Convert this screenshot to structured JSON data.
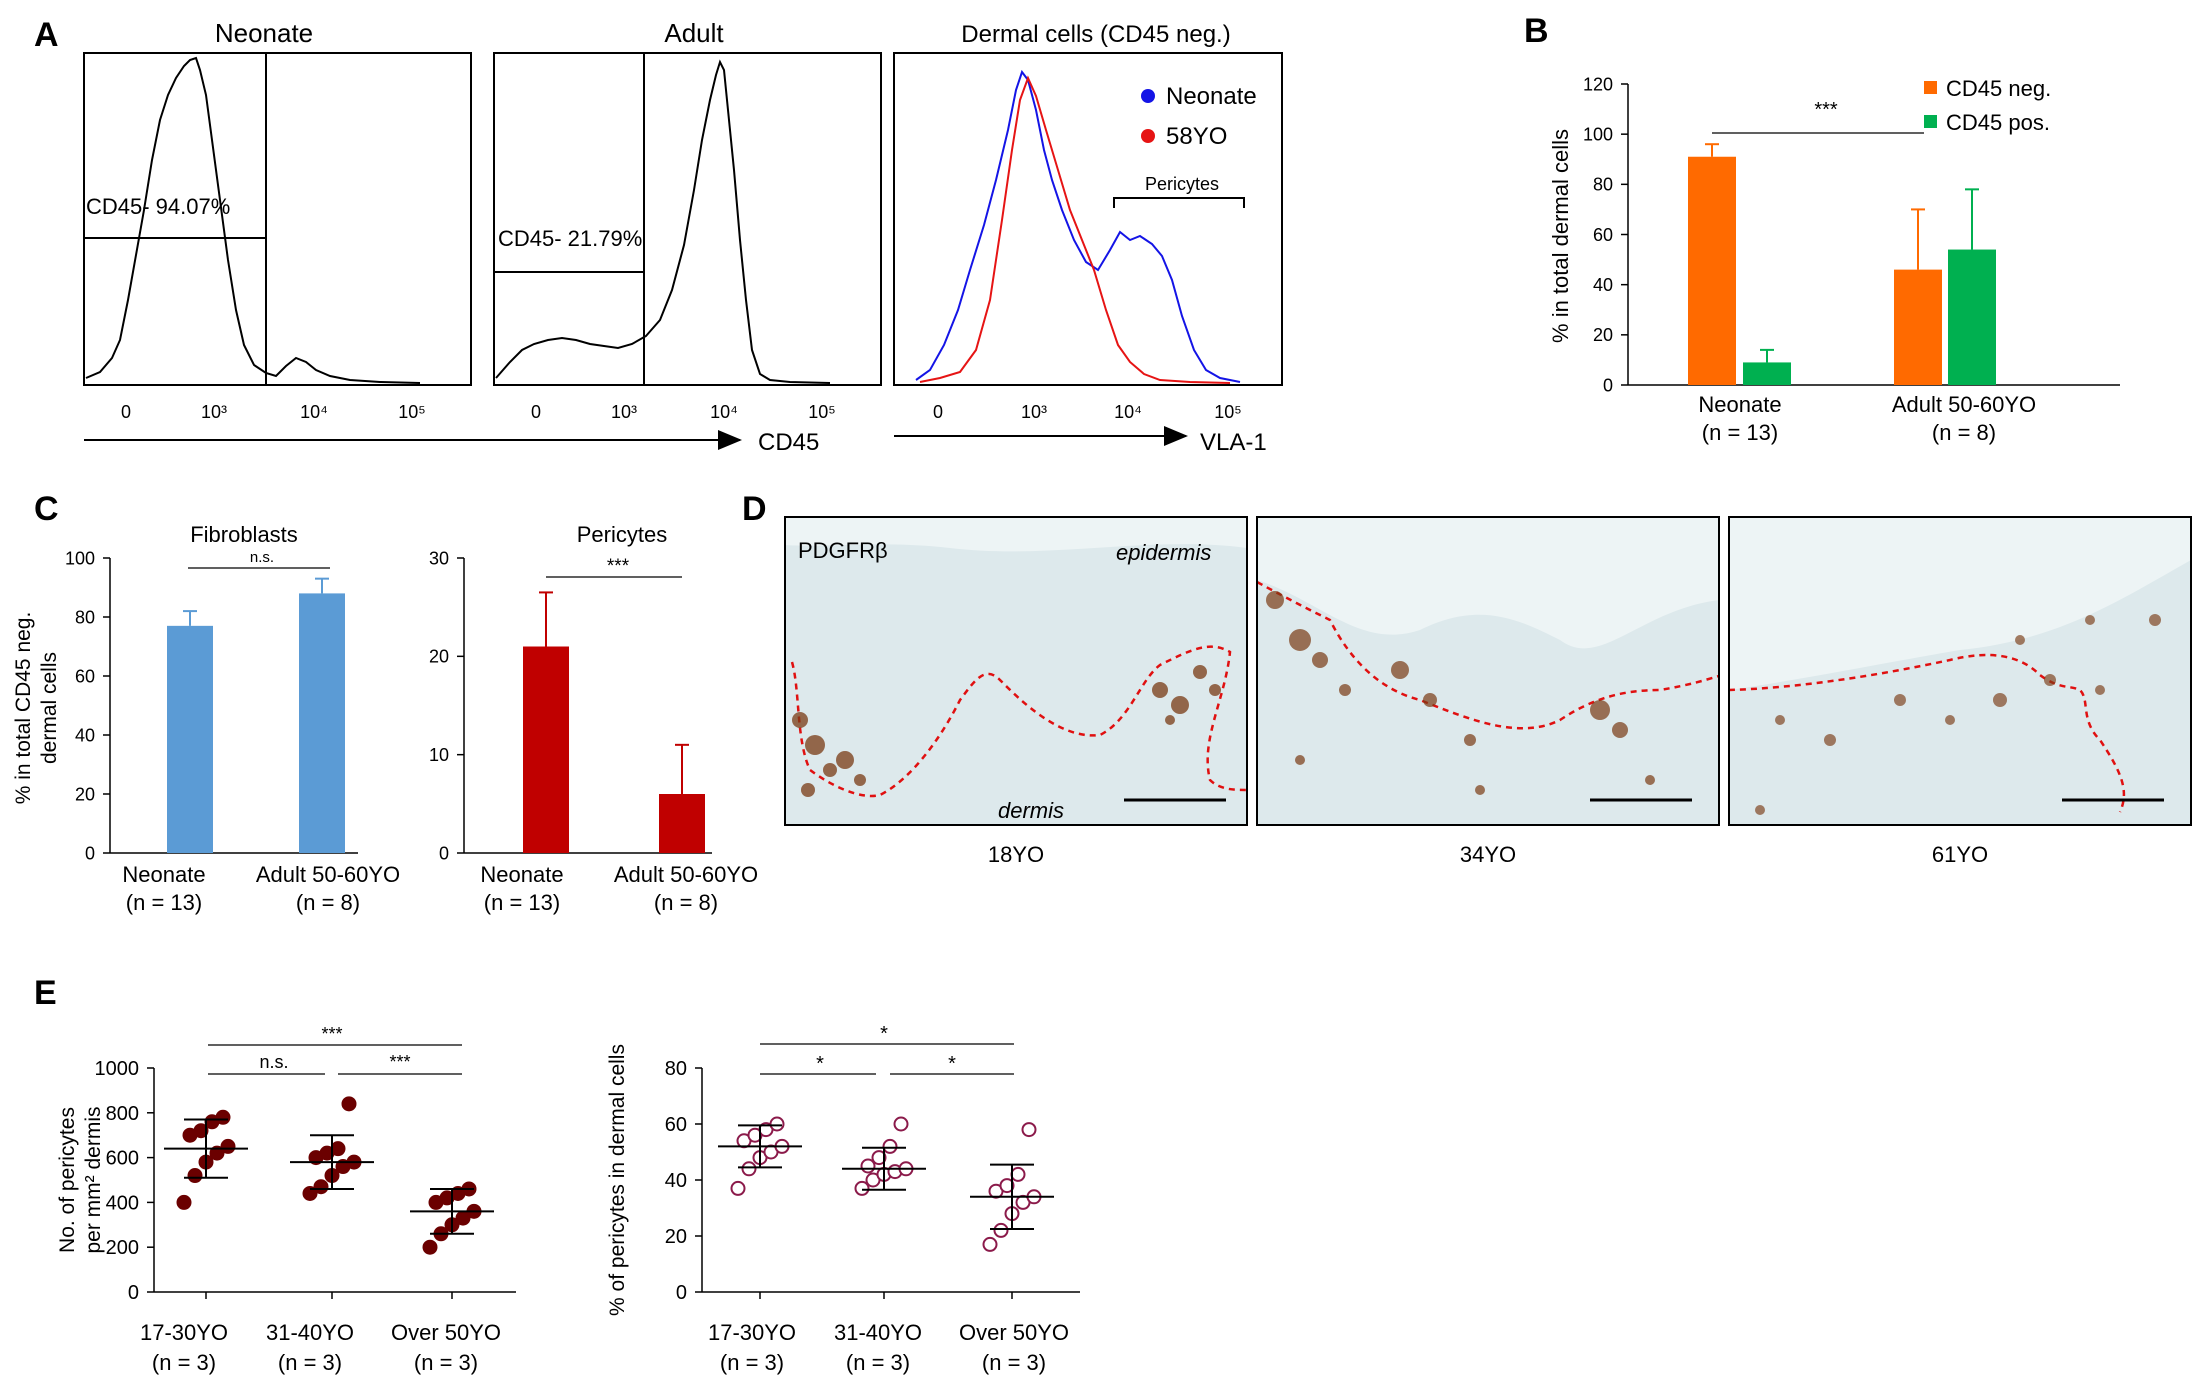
{
  "panels": {
    "a": "A",
    "b": "B",
    "c": "C",
    "d": "D",
    "e": "E"
  },
  "colors": {
    "neonate_line": "#1414e6",
    "adult_line": "#e61414",
    "orange": "#ff6a00",
    "green": "#00b050",
    "blue_bar": "#5b9bd5",
    "red_bar": "#c00000",
    "maroon": "#6b0000",
    "purple_open": "#8b1a4a",
    "tissue": "#dde9ec",
    "stain": "#7a3b14",
    "dash": "#e01010"
  },
  "chart_data": [
    {
      "id": "A1",
      "type": "histogram",
      "title": "Neonate",
      "gate_label": "CD45- 94.07%",
      "tick_labels": [
        "0",
        "10³",
        "10⁴",
        "10⁵"
      ]
    },
    {
      "id": "A2",
      "type": "histogram",
      "title": "Adult",
      "gate_label": "CD45- 21.79%",
      "tick_labels": [
        "0",
        "10³",
        "10⁴",
        "10⁵"
      ],
      "xlabel": "CD45"
    },
    {
      "id": "A3",
      "type": "histogram",
      "title": "Dermal cells (CD45 neg.)",
      "tick_labels": [
        "0",
        "10³",
        "10⁴",
        "10⁵"
      ],
      "legend": [
        "Neonate",
        "58YO"
      ],
      "annotation": "Pericytes",
      "xlabel": "VLA-1"
    },
    {
      "id": "B",
      "type": "bar",
      "categories": [
        "Neonate",
        "Adult 50-60YO"
      ],
      "category_n": [
        "(n = 13)",
        "(n = 8)"
      ],
      "series": [
        {
          "name": "CD45 neg.",
          "values": [
            91,
            46
          ],
          "errors": [
            5,
            24
          ]
        },
        {
          "name": "CD45 pos.",
          "values": [
            9,
            54
          ],
          "errors": [
            5,
            24
          ]
        }
      ],
      "ylabel": "% in total dermal cells",
      "ylim": [
        0,
        120
      ],
      "yticks": [
        "0",
        "20",
        "40",
        "60",
        "80",
        "100",
        "120"
      ],
      "significance": "***"
    },
    {
      "id": "C1",
      "type": "bar",
      "title": "Fibroblasts",
      "categories": [
        "Neonate",
        "Adult 50-60YO"
      ],
      "category_n": [
        "(n = 13)",
        "(n = 8)"
      ],
      "values": [
        77,
        88
      ],
      "errors": [
        5,
        5
      ],
      "ylabel": "% in total CD45 neg.",
      "ylabel2": "dermal cells",
      "ylim": [
        0,
        100
      ],
      "yticks": [
        "0",
        "20",
        "40",
        "60",
        "80",
        "100"
      ],
      "significance": "n.s."
    },
    {
      "id": "C2",
      "type": "bar",
      "title": "Pericytes",
      "categories": [
        "Neonate",
        "Adult 50-60YO"
      ],
      "category_n": [
        "(n = 13)",
        "(n = 8)"
      ],
      "values": [
        21,
        6
      ],
      "errors": [
        5.5,
        5
      ],
      "ylim": [
        0,
        30
      ],
      "yticks": [
        "0",
        "10",
        "20",
        "30"
      ],
      "significance": "***"
    },
    {
      "id": "D",
      "type": "image-panels",
      "stain_label": "PDGFRβ",
      "epidermis_label": "epidermis",
      "dermis_label": "dermis",
      "captions": [
        "18YO",
        "34YO",
        "61YO"
      ]
    },
    {
      "id": "E1",
      "type": "scatter",
      "categories": [
        "17-30YO",
        "31-40YO",
        "Over 50YO"
      ],
      "category_n": [
        "(n = 3)",
        "(n = 3)",
        "(n = 3)"
      ],
      "points": [
        [
          400,
          520,
          580,
          620,
          650,
          700,
          720,
          760,
          780
        ],
        [
          440,
          470,
          520,
          560,
          580,
          600,
          620,
          640,
          840
        ],
        [
          200,
          260,
          300,
          330,
          360,
          400,
          420,
          440,
          460
        ]
      ],
      "means": [
        640,
        580,
        360
      ],
      "sd": [
        130,
        120,
        100
      ],
      "ylabel": "No. of pericytes",
      "ylabel2": "per mm² dermis",
      "ylim": [
        0,
        1000
      ],
      "yticks": [
        "0",
        "200",
        "400",
        "600",
        "800",
        "1000"
      ],
      "significance": [
        "n.s.",
        "***",
        "***"
      ]
    },
    {
      "id": "E2",
      "type": "scatter",
      "categories": [
        "17-30YO",
        "31-40YO",
        "Over 50YO"
      ],
      "category_n": [
        "(n = 3)",
        "(n = 3)",
        "(n = 3)"
      ],
      "points": [
        [
          37,
          44,
          48,
          50,
          52,
          54,
          56,
          58,
          60
        ],
        [
          37,
          40,
          42,
          43,
          44,
          45,
          48,
          52,
          60
        ],
        [
          17,
          22,
          28,
          32,
          34,
          36,
          38,
          42,
          58
        ]
      ],
      "means": [
        52,
        44,
        34
      ],
      "sd": [
        7.5,
        7.5,
        11.5
      ],
      "ylabel": "% of pericytes in dermal cells",
      "ylim": [
        0,
        80
      ],
      "yticks": [
        "0",
        "20",
        "40",
        "60",
        "80"
      ],
      "significance": [
        "*",
        "*",
        "*"
      ]
    }
  ]
}
